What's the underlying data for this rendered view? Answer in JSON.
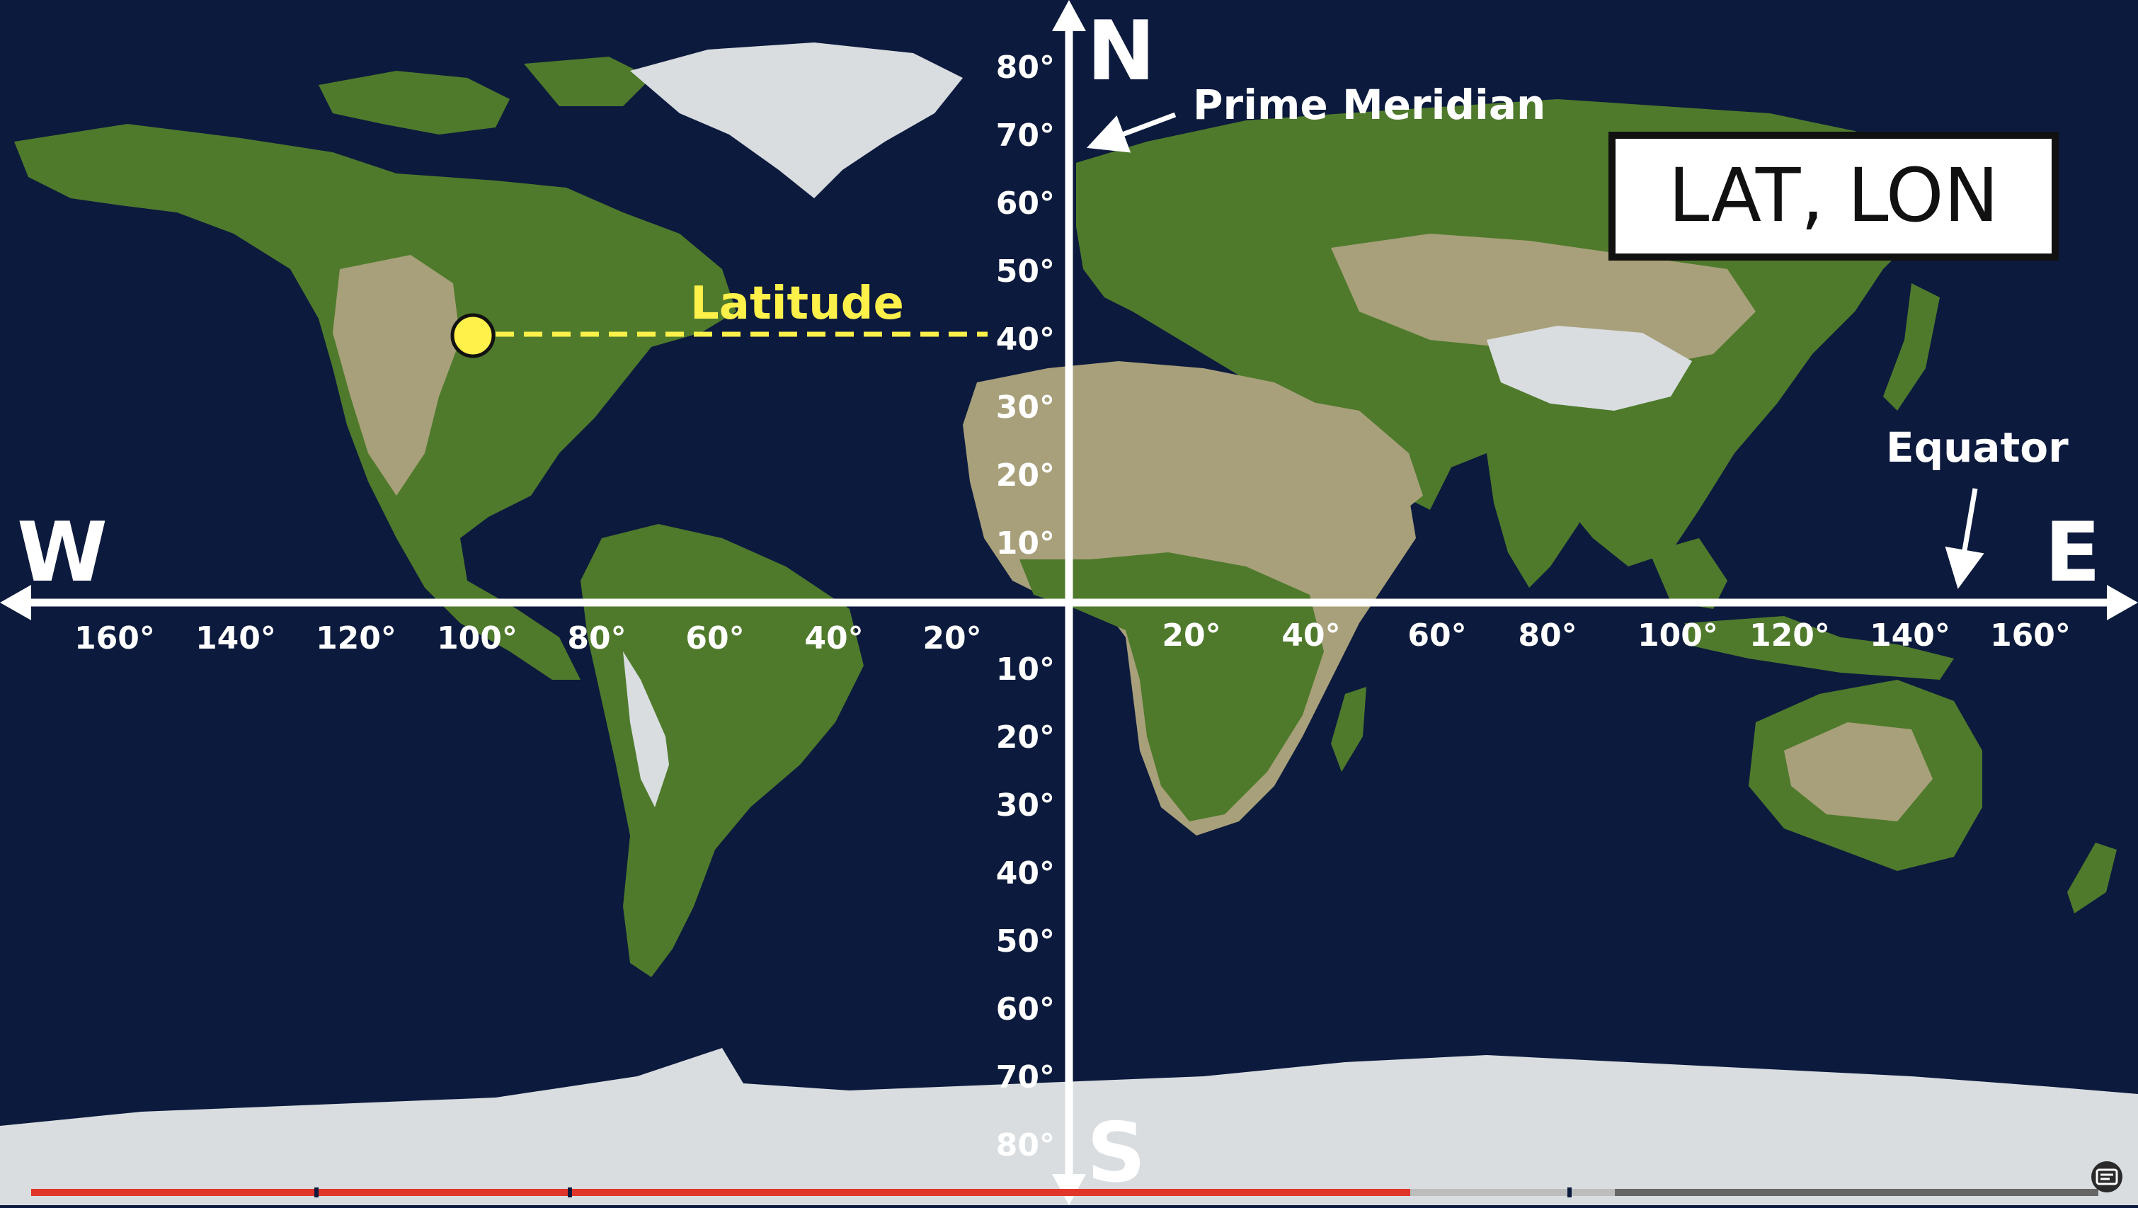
{
  "map": {
    "directions": {
      "north": "N",
      "south": "S",
      "west": "W",
      "east": "E"
    },
    "title_card": "LAT, LON",
    "annotations": {
      "prime_meridian": "Prime Meridian",
      "equator": "Equator",
      "latitude": "Latitude"
    },
    "marker": {
      "color": "#fff04a",
      "lat": 40,
      "lon": -100
    },
    "north_latitude_labels": [
      "80°",
      "70°",
      "60°",
      "50°",
      "40°",
      "30°",
      "20°",
      "10°"
    ],
    "south_latitude_labels": [
      "10°",
      "20°",
      "30°",
      "40°",
      "50°",
      "60°",
      "70°",
      "80°"
    ],
    "west_longitude_labels": [
      "160°",
      "140°",
      "120°",
      "100°",
      "80°",
      "60°",
      "40°",
      "20°"
    ],
    "east_longitude_labels": [
      "20°",
      "40°",
      "60°",
      "80°",
      "100°",
      "120°",
      "140°",
      "160°"
    ]
  },
  "player": {
    "progress": 0.667,
    "buffered": 0.766,
    "icon": "subtitles-icon"
  },
  "colors": {
    "ocean": "#0c1a3d",
    "land_green": "#4f7a2c",
    "land_desert": "#a8a07a",
    "ice": "#d9dde0",
    "axes": "#ffffff",
    "latitude_line": "#fff04a",
    "progress_played": "#e0352b",
    "progress_buffered": "#bdbdbd"
  }
}
